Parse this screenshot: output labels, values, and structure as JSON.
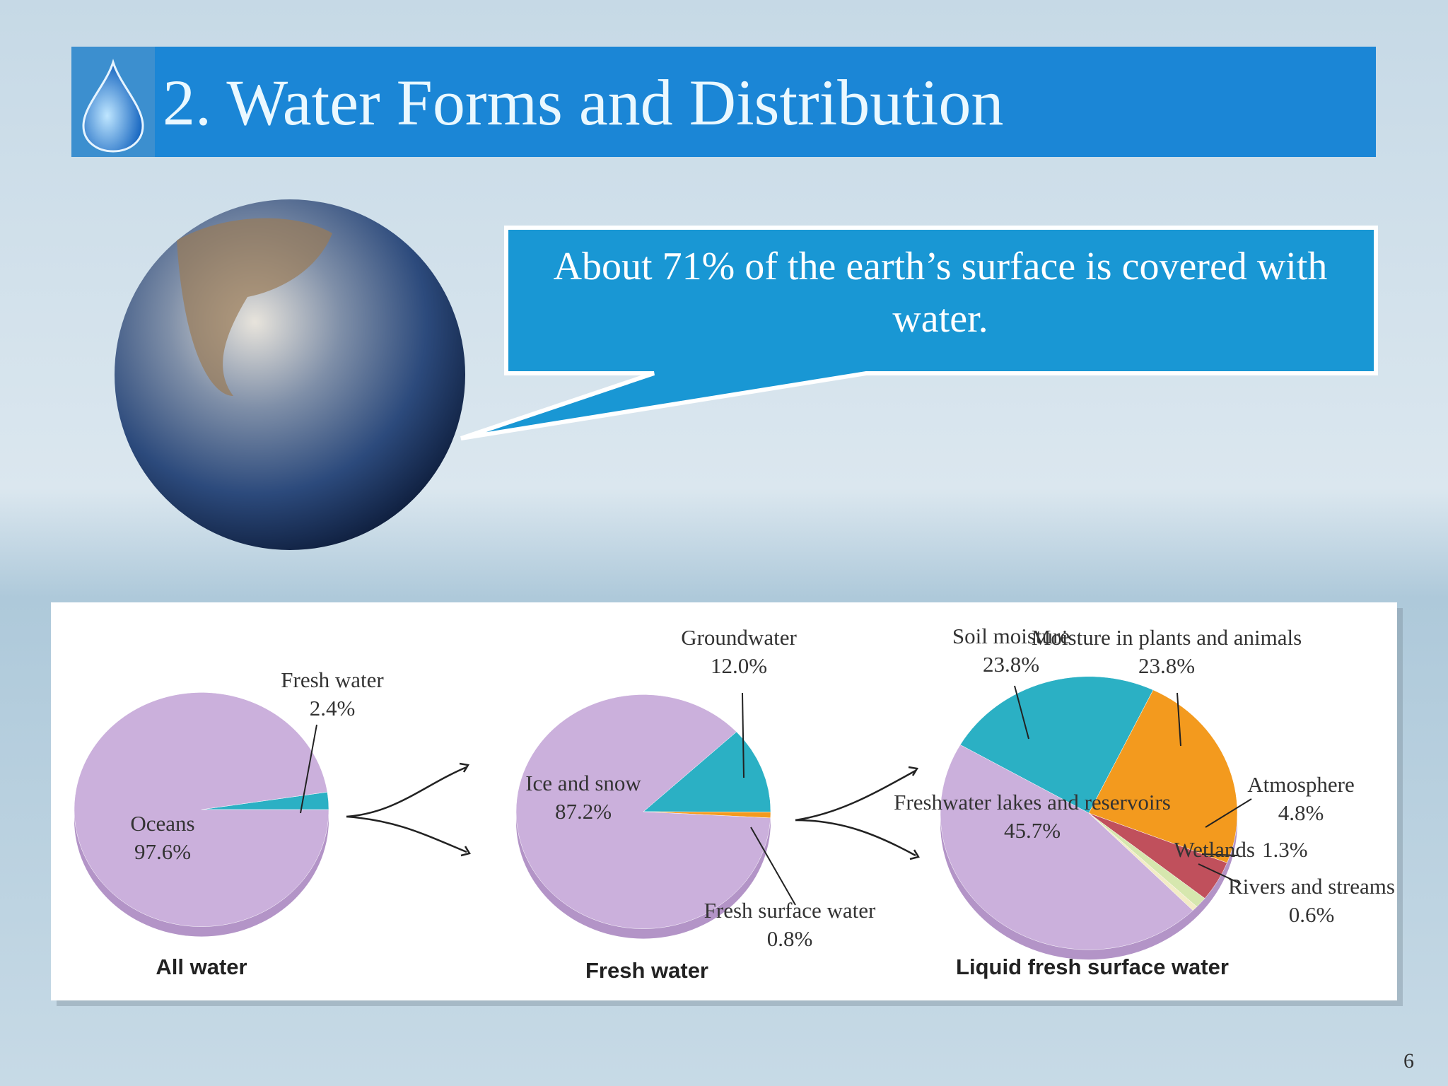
{
  "title": "2. Water Forms and Distribution",
  "callout": "About 71% of the earth’s surface is covered with water.",
  "page_number": "6",
  "chart_data": [
    {
      "type": "pie",
      "title": "All water",
      "categories": [
        "Fresh water",
        "Oceans"
      ],
      "values": [
        2.4,
        97.6
      ],
      "value_labels": [
        "2.4%",
        "97.6%"
      ],
      "colors": [
        "#2bb0c4",
        "#cbb0dc"
      ]
    },
    {
      "type": "pie",
      "title": "Fresh water",
      "categories": [
        "Groundwater",
        "Fresh surface water",
        "Ice and snow"
      ],
      "values": [
        12.0,
        0.8,
        87.2
      ],
      "value_labels": [
        "12.0%",
        "0.8%",
        "87.2%"
      ],
      "colors": [
        "#2bb0c4",
        "#f39a1e",
        "#cbb0dc"
      ]
    },
    {
      "type": "pie",
      "title": "Liquid fresh surface water",
      "categories": [
        "Soil moisture",
        "Moisture in plants and animals",
        "Atmosphere",
        "Wetlands",
        "Rivers and streams",
        "Freshwater lakes and reservoirs"
      ],
      "values": [
        23.8,
        23.8,
        4.8,
        1.3,
        0.6,
        45.7
      ],
      "value_labels": [
        "23.8%",
        "23.8%",
        "4.8%",
        "1.3%",
        "0.6%",
        "45.7%"
      ],
      "colors": [
        "#2bb0c4",
        "#f39a1e",
        "#c0505c",
        "#d6e7ae",
        "#f3ecc6",
        "#cbb0dc"
      ]
    }
  ]
}
